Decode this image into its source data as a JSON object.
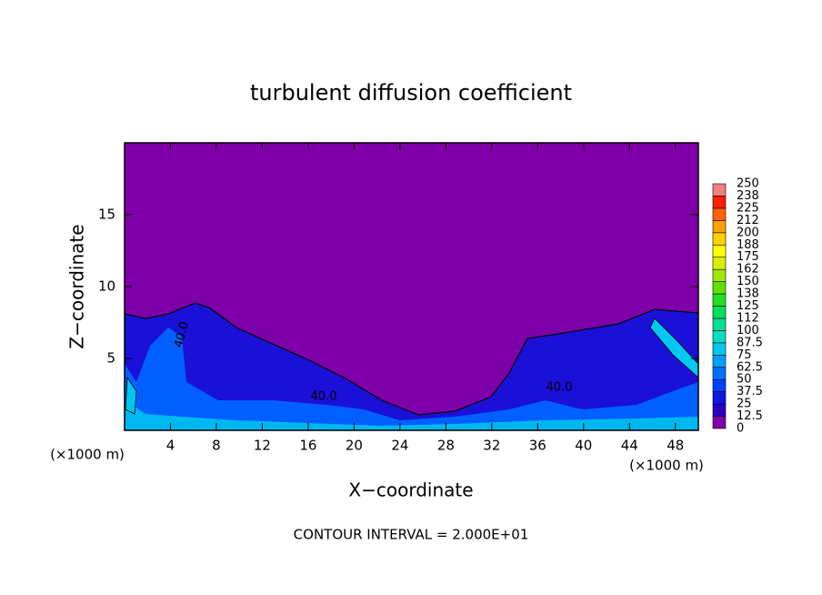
{
  "chart_data": {
    "type": "contour",
    "title": "turbulent diffusion coefficient",
    "xlabel": "X−coordinate",
    "ylabel": "Z−coordinate",
    "x_unit": "(×1000 m)",
    "y_unit": "(×1000 m)",
    "xlim": [
      0,
      50
    ],
    "xticks": [
      4,
      8,
      12,
      16,
      20,
      24,
      28,
      32,
      36,
      40,
      44,
      48
    ],
    "ylim": [
      0,
      20
    ],
    "yticks": [
      5,
      10,
      15
    ],
    "annotations": [
      "40.0",
      "40.0",
      "40.0"
    ],
    "footer": "CONTOUR INTERVAL = 2.000E+01",
    "colorbar": {
      "levels": [
        0,
        12.5,
        25,
        37.5,
        50,
        62.5,
        75,
        87.5,
        100,
        112,
        125,
        138,
        150,
        162,
        175,
        188,
        200,
        212,
        225,
        238,
        250
      ],
      "colors": [
        "#7e00a8",
        "#2a00c4",
        "#1018e8",
        "#0040ff",
        "#0070ff",
        "#00a0ff",
        "#00c8f0",
        "#00e0c0",
        "#00e090",
        "#00e060",
        "#20e020",
        "#60e000",
        "#a0e800",
        "#d8f000",
        "#ffff00",
        "#ffd000",
        "#ffa000",
        "#ff6000",
        "#ff2000",
        "#f08080"
      ]
    }
  }
}
